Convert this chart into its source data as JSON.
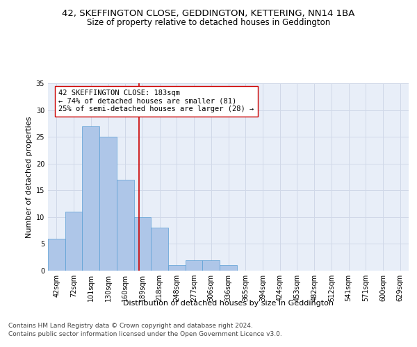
{
  "title_line1": "42, SKEFFINGTON CLOSE, GEDDINGTON, KETTERING, NN14 1BA",
  "title_line2": "Size of property relative to detached houses in Geddington",
  "xlabel": "Distribution of detached houses by size in Geddington",
  "ylabel": "Number of detached properties",
  "bar_labels": [
    "42sqm",
    "72sqm",
    "101sqm",
    "130sqm",
    "160sqm",
    "189sqm",
    "218sqm",
    "248sqm",
    "277sqm",
    "306sqm",
    "336sqm",
    "365sqm",
    "394sqm",
    "424sqm",
    "453sqm",
    "482sqm",
    "512sqm",
    "541sqm",
    "571sqm",
    "600sqm",
    "629sqm"
  ],
  "bar_values": [
    6,
    11,
    27,
    25,
    17,
    10,
    8,
    1,
    2,
    2,
    1,
    0,
    0,
    0,
    0,
    0,
    0,
    0,
    0,
    0
  ],
  "bar_color": "#aec6e8",
  "bar_edge_color": "#5a9fd4",
  "grid_color": "#d0d8e8",
  "background_color": "#e8eef8",
  "vline_color": "#cc0000",
  "annotation_text": "42 SKEFFINGTON CLOSE: 183sqm\n← 74% of detached houses are smaller (81)\n25% of semi-detached houses are larger (28) →",
  "annotation_box_color": "#ffffff",
  "annotation_edge_color": "#cc0000",
  "ylim": [
    0,
    35
  ],
  "yticks": [
    0,
    5,
    10,
    15,
    20,
    25,
    30,
    35
  ],
  "footer_line1": "Contains HM Land Registry data © Crown copyright and database right 2024.",
  "footer_line2": "Contains public sector information licensed under the Open Government Licence v3.0.",
  "title_fontsize": 9.5,
  "subtitle_fontsize": 8.5,
  "ylabel_fontsize": 8,
  "annotation_fontsize": 7.5,
  "tick_fontsize": 7,
  "xlabel_fontsize": 8,
  "footer_fontsize": 6.5
}
